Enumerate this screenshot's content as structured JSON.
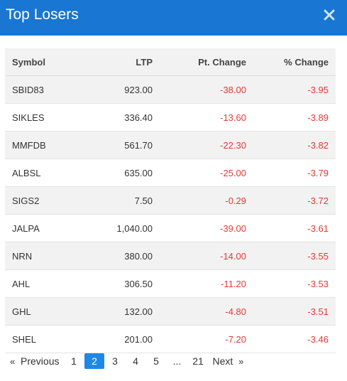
{
  "header": {
    "title": "Top Losers",
    "close_icon": "close-icon"
  },
  "table": {
    "columns": [
      "Symbol",
      "LTP",
      "Pt. Change",
      "% Change"
    ],
    "rows": [
      {
        "symbol": "SBID83",
        "ltp": "923.00",
        "pt_change": "-38.00",
        "pct_change": "-3.95"
      },
      {
        "symbol": "SIKLES",
        "ltp": "336.40",
        "pt_change": "-13.60",
        "pct_change": "-3.89"
      },
      {
        "symbol": "MMFDB",
        "ltp": "561.70",
        "pt_change": "-22.30",
        "pct_change": "-3.82"
      },
      {
        "symbol": "ALBSL",
        "ltp": "635.00",
        "pt_change": "-25.00",
        "pct_change": "-3.79"
      },
      {
        "symbol": "SIGS2",
        "ltp": "7.50",
        "pt_change": "-0.29",
        "pct_change": "-3.72"
      },
      {
        "symbol": "JALPA",
        "ltp": "1,040.00",
        "pt_change": "-39.00",
        "pct_change": "-3.61"
      },
      {
        "symbol": "NRN",
        "ltp": "380.00",
        "pt_change": "-14.00",
        "pct_change": "-3.55"
      },
      {
        "symbol": "AHL",
        "ltp": "306.50",
        "pt_change": "-11.20",
        "pct_change": "-3.53"
      },
      {
        "symbol": "GHL",
        "ltp": "132.00",
        "pt_change": "-4.80",
        "pct_change": "-3.51"
      },
      {
        "symbol": "SHEL",
        "ltp": "201.00",
        "pt_change": "-7.20",
        "pct_change": "-3.46"
      }
    ]
  },
  "pagination": {
    "prev_arrow": "«",
    "previous": "Previous",
    "pages": [
      "1",
      "2",
      "3",
      "4",
      "5"
    ],
    "ellipsis": "...",
    "last_page": "21",
    "next": "Next",
    "next_arrow": "»",
    "current": "2"
  },
  "colors": {
    "header_bg": "#1976d2",
    "negative": "#e53935",
    "active_page": "#1e88e5"
  }
}
